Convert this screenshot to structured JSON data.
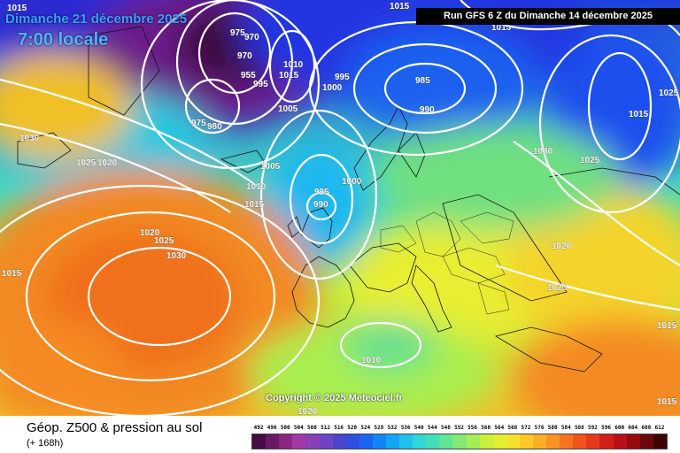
{
  "header": {
    "date": "Dimanche 21 décembre 2025",
    "time": "7:00 locale",
    "run": "Run GFS 6 Z du Dimanche 14 décembre 2025"
  },
  "copyright": "Copyright © 2025 Meteociel.fr",
  "footer": {
    "title": "Géop. Z500 & pression au sol",
    "subtitle": "(+ 168h)"
  },
  "isobars": [
    "1015",
    "975",
    "970",
    "970",
    "955",
    "995",
    "1010",
    "1015",
    "1005",
    "975",
    "980",
    "1030",
    "1025",
    "1020",
    "1020",
    "1025",
    "1030",
    "1015",
    "995",
    "1000",
    "985",
    "990",
    "1005",
    "1010",
    "1015",
    "995",
    "990",
    "1000",
    "1015",
    "1030",
    "1025",
    "1015",
    "1020",
    "1020",
    "1025",
    "1010",
    "1020",
    "1015",
    "1015",
    "1015"
  ],
  "colorscale": {
    "ticks": [
      "492",
      "496",
      "500",
      "504",
      "508",
      "512",
      "516",
      "520",
      "524",
      "528",
      "532",
      "536",
      "540",
      "544",
      "548",
      "552",
      "556",
      "560",
      "564",
      "568",
      "572",
      "576",
      "580",
      "584",
      "588",
      "592",
      "596",
      "600",
      "604",
      "608",
      "612"
    ],
    "colors": [
      "#4a0a44",
      "#6a1a64",
      "#8a2684",
      "#a33aa3",
      "#8b3fb6",
      "#6e44c4",
      "#4b44cf",
      "#2f4fe0",
      "#1a66f0",
      "#0f86f5",
      "#12a6f2",
      "#1fc2ec",
      "#30d6d8",
      "#44dfb8",
      "#60e495",
      "#82ea73",
      "#a5ee55",
      "#c8f03c",
      "#e4ee2e",
      "#f6e12a",
      "#fcc927",
      "#fcaf25",
      "#fb9322",
      "#f6741f",
      "#ef551c",
      "#e5391a",
      "#d21f18",
      "#b81014",
      "#950b10",
      "#6d070b",
      "#3d0406"
    ]
  }
}
